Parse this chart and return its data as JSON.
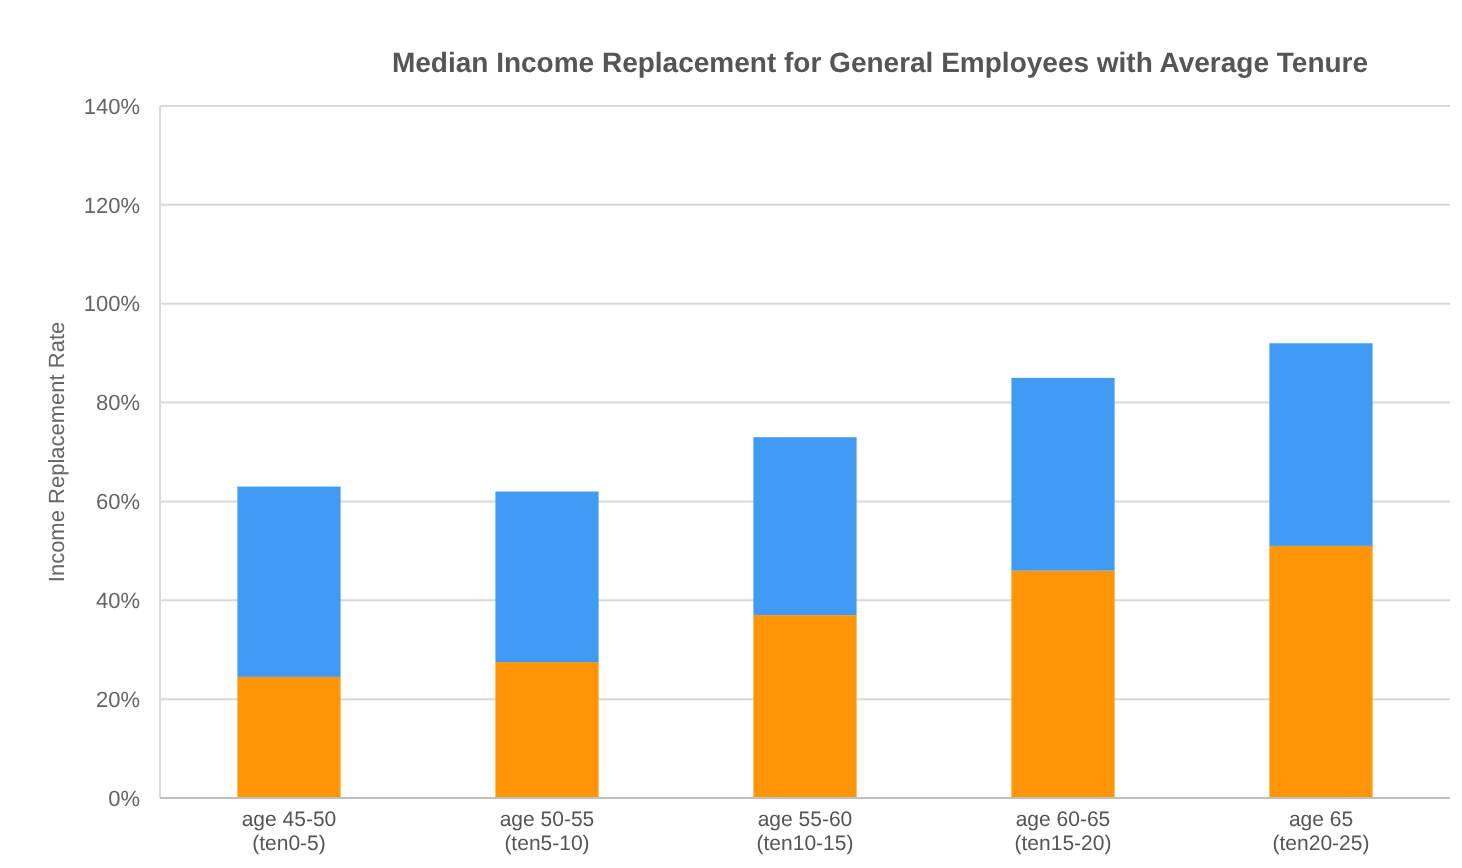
{
  "chart_data": {
    "type": "bar",
    "title": "Median Income Replacement for General Employees with Average Tenure",
    "ylabel": "Income Replacement Rate",
    "categories": [
      "age 45-50\n(ten0-5)",
      "age 50-55\n(ten5-10)",
      "age 55-60\n(ten10-15)",
      "age 60-65\n(ten15-20)",
      "age 65\n(ten20-25)"
    ],
    "series": [
      {
        "color": "#ff9507",
        "values": [
          24.5,
          27.5,
          37,
          46,
          51
        ]
      },
      {
        "color": "#419bf5",
        "values": [
          38.5,
          34.5,
          36,
          39,
          41
        ]
      }
    ],
    "stacked": true,
    "ylim": [
      0,
      140
    ],
    "yticks": [
      {
        "value": 0,
        "label": "0%"
      },
      {
        "value": 20,
        "label": "20%"
      },
      {
        "value": 40,
        "label": "40%"
      },
      {
        "value": 60,
        "label": "60%"
      },
      {
        "value": 80,
        "label": "80%"
      },
      {
        "value": 100,
        "label": "100%"
      },
      {
        "value": 120,
        "label": "120%"
      },
      {
        "value": 140,
        "label": "140%"
      }
    ],
    "grid": "y"
  }
}
